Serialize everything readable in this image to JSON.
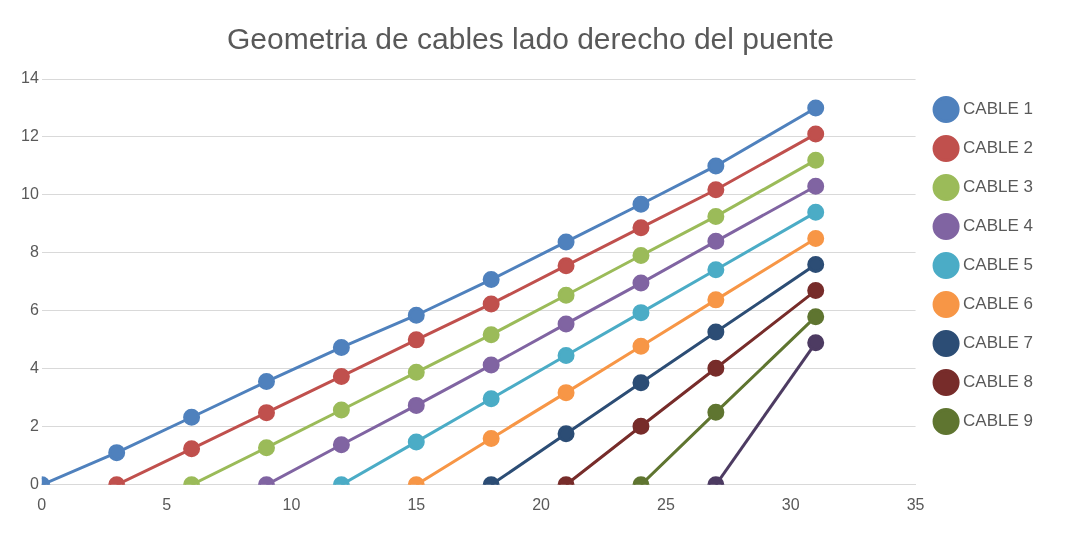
{
  "chart_data": {
    "type": "line",
    "title": "Geometria de cables lado derecho del puente",
    "xlim": [
      0,
      35
    ],
    "xticks": [
      0,
      5,
      10,
      15,
      20,
      25,
      30,
      35
    ],
    "ylim": [
      0,
      14
    ],
    "yticks": [
      0,
      2,
      4,
      6,
      8,
      10,
      12,
      14
    ],
    "grid": "y",
    "legend": "right",
    "marker": "circle",
    "line_style": "solid",
    "series": [
      {
        "name": "CABLE 1",
        "color": "#4f81bd",
        "x": [
          0,
          3,
          6,
          9,
          12,
          15,
          18,
          21,
          24,
          27,
          31
        ],
        "values": [
          0,
          1.11,
          2.33,
          3.56,
          4.74,
          5.85,
          7.08,
          8.38,
          9.68,
          11.0,
          13.0
        ]
      },
      {
        "name": "CABLE 2",
        "color": "#c0504d",
        "x": [
          3,
          6,
          9,
          12,
          15,
          18,
          21,
          24,
          27,
          31
        ],
        "values": [
          0,
          1.24,
          2.49,
          3.74,
          5.0,
          6.24,
          7.56,
          8.87,
          10.18,
          12.1
        ]
      },
      {
        "name": "CABLE 3",
        "color": "#9bbb59",
        "x": [
          6,
          9,
          12,
          15,
          18,
          21,
          24,
          27,
          31
        ],
        "values": [
          0,
          1.28,
          2.58,
          3.88,
          5.18,
          6.54,
          7.91,
          9.26,
          11.2
        ]
      },
      {
        "name": "CABLE 4",
        "color": "#8064a2",
        "x": [
          9,
          12,
          15,
          18,
          21,
          24,
          27,
          31
        ],
        "values": [
          0,
          1.38,
          2.74,
          4.13,
          5.55,
          6.96,
          8.4,
          10.3
        ]
      },
      {
        "name": "CABLE 5",
        "color": "#4bacc6",
        "x": [
          12,
          15,
          18,
          21,
          24,
          27,
          31
        ],
        "values": [
          0,
          1.48,
          2.97,
          4.46,
          5.94,
          7.42,
          9.4
        ]
      },
      {
        "name": "CABLE 6",
        "color": "#f79646",
        "x": [
          15,
          18,
          21,
          24,
          27,
          31
        ],
        "values": [
          0,
          1.6,
          3.18,
          4.78,
          6.38,
          8.5
        ]
      },
      {
        "name": "CABLE 7",
        "color": "#2c4d75",
        "x": [
          18,
          21,
          24,
          27,
          31
        ],
        "values": [
          0,
          1.76,
          3.52,
          5.27,
          7.6
        ]
      },
      {
        "name": "CABLE 8",
        "color": "#772c2a",
        "x": [
          21,
          24,
          27,
          31
        ],
        "values": [
          0,
          2.02,
          4.02,
          6.7
        ]
      },
      {
        "name": "CABLE 9",
        "color": "#5f7530",
        "x": [
          24,
          27,
          31
        ],
        "values": [
          0,
          2.5,
          5.8
        ]
      },
      {
        "color": "#4d3b62",
        "x": [
          27,
          31
        ],
        "values": [
          0,
          4.9
        ]
      }
    ]
  }
}
